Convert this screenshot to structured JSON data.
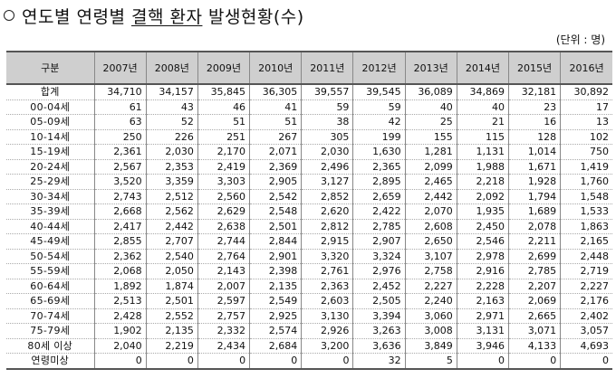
{
  "title": {
    "part1": "연도별 연령별 ",
    "part2": "결핵 환자",
    "part3": " 발생현황(수)"
  },
  "unit_note": "(단위 : 명)",
  "table": {
    "header": [
      "구분",
      "2007년",
      "2008년",
      "2009년",
      "2010년",
      "2011년",
      "2012년",
      "2013년",
      "2014년",
      "2015년",
      "2016년"
    ],
    "rows": [
      {
        "label": "합계",
        "values": [
          "34,710",
          "34,157",
          "35,845",
          "36,305",
          "39,557",
          "39,545",
          "36,089",
          "34,869",
          "32,181",
          "30,892"
        ]
      },
      {
        "label": "00-04세",
        "values": [
          "61",
          "43",
          "46",
          "41",
          "59",
          "59",
          "40",
          "40",
          "23",
          "17"
        ]
      },
      {
        "label": "05-09세",
        "values": [
          "63",
          "52",
          "51",
          "51",
          "38",
          "42",
          "25",
          "21",
          "16",
          "13"
        ]
      },
      {
        "label": "10-14세",
        "values": [
          "250",
          "226",
          "251",
          "267",
          "305",
          "199",
          "155",
          "115",
          "128",
          "102"
        ]
      },
      {
        "label": "15-19세",
        "values": [
          "2,361",
          "2,030",
          "2,170",
          "2,071",
          "2,030",
          "1,630",
          "1,281",
          "1,131",
          "1,014",
          "750"
        ]
      },
      {
        "label": "20-24세",
        "values": [
          "2,567",
          "2,353",
          "2,419",
          "2,369",
          "2,496",
          "2,365",
          "2,099",
          "1,988",
          "1,671",
          "1,419"
        ]
      },
      {
        "label": "25-29세",
        "values": [
          "3,520",
          "3,359",
          "3,303",
          "2,905",
          "3,127",
          "2,895",
          "2,465",
          "2,218",
          "1,928",
          "1,760"
        ]
      },
      {
        "label": "30-34세",
        "values": [
          "2,743",
          "2,512",
          "2,560",
          "2,542",
          "2,852",
          "2,659",
          "2,442",
          "2,092",
          "1,794",
          "1,548"
        ]
      },
      {
        "label": "35-39세",
        "values": [
          "2,668",
          "2,562",
          "2,629",
          "2,548",
          "2,620",
          "2,422",
          "2,070",
          "1,935",
          "1,689",
          "1,533"
        ]
      },
      {
        "label": "40-44세",
        "values": [
          "2,417",
          "2,442",
          "2,638",
          "2,501",
          "2,812",
          "2,785",
          "2,608",
          "2,450",
          "2,078",
          "1,863"
        ]
      },
      {
        "label": "45-49세",
        "values": [
          "2,855",
          "2,707",
          "2,744",
          "2,844",
          "2,915",
          "2,907",
          "2,650",
          "2,546",
          "2,211",
          "2,165"
        ]
      },
      {
        "label": "50-54세",
        "values": [
          "2,362",
          "2,540",
          "2,764",
          "2,901",
          "3,320",
          "3,324",
          "3,107",
          "2,978",
          "2,699",
          "2,448"
        ]
      },
      {
        "label": "55-59세",
        "values": [
          "2,068",
          "2,050",
          "2,143",
          "2,398",
          "2,761",
          "2,976",
          "2,758",
          "2,916",
          "2,785",
          "2,719"
        ]
      },
      {
        "label": "60-64세",
        "values": [
          "1,892",
          "1,874",
          "2,007",
          "2,135",
          "2,363",
          "2,452",
          "2,227",
          "2,228",
          "2,207",
          "2,227"
        ]
      },
      {
        "label": "65-69세",
        "values": [
          "2,513",
          "2,501",
          "2,597",
          "2,549",
          "2,603",
          "2,505",
          "2,240",
          "2,163",
          "2,069",
          "2,176"
        ]
      },
      {
        "label": "70-74세",
        "values": [
          "2,428",
          "2,552",
          "2,757",
          "2,925",
          "3,130",
          "3,394",
          "3,060",
          "2,971",
          "2,665",
          "2,402"
        ]
      },
      {
        "label": "75-79세",
        "values": [
          "1,902",
          "2,135",
          "2,332",
          "2,574",
          "2,926",
          "3,263",
          "3,008",
          "3,131",
          "3,071",
          "3,057"
        ]
      },
      {
        "label": "80세 이상",
        "values": [
          "2,040",
          "2,219",
          "2,434",
          "2,684",
          "3,200",
          "3,636",
          "3,849",
          "3,946",
          "4,133",
          "4,693"
        ]
      },
      {
        "label": "연령미상",
        "values": [
          "0",
          "0",
          "0",
          "0",
          "0",
          "32",
          "5",
          "0",
          "0",
          "0"
        ]
      }
    ]
  }
}
